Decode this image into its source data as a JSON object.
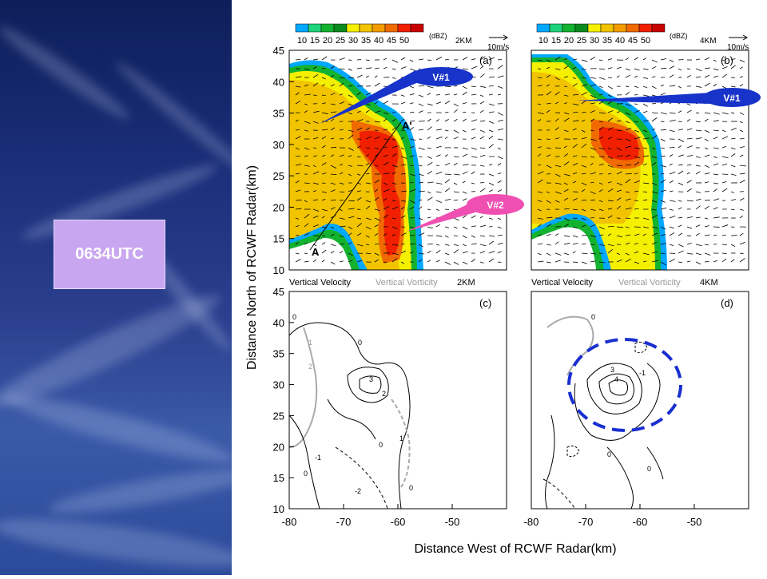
{
  "time_label": "0634UTC",
  "colorbar": {
    "ticks": [
      "10",
      "15",
      "20",
      "25",
      "30",
      "35",
      "40",
      "45",
      "50"
    ],
    "unit": "(dBZ)",
    "colors": [
      "#00a8ff",
      "#1fd37a",
      "#13b330",
      "#0b8a1e",
      "#f5f000",
      "#f2c400",
      "#f29c00",
      "#f06a00",
      "#f02000",
      "#c80000"
    ]
  },
  "panels": {
    "a": {
      "tag": "(a)",
      "height": "2KM",
      "vector": "10m/s",
      "bottom_left": "Vertical Velocity",
      "bottom_mid": "Vertical Vorticity",
      "bottom_right": "2KM"
    },
    "b": {
      "tag": "(b)",
      "height": "4KM",
      "vector": "10m/s",
      "bottom_left": "Vertical Velocity",
      "bottom_mid": "Vertical Vorticity",
      "bottom_right": "4KM"
    },
    "c": {
      "tag": "(c)"
    },
    "d": {
      "tag": "(d)"
    }
  },
  "callouts": {
    "v1": "V#1",
    "v2": "V#2",
    "a_start": "A",
    "a_end": "A'"
  },
  "axes": {
    "ylabel": "Distance North of RCWF Radar(km)",
    "xlabel": "Distance West of RCWF Radar(km)",
    "yticks": [
      "45",
      "40",
      "35",
      "30",
      "25",
      "20",
      "15",
      "10"
    ],
    "xticks": [
      "-80",
      "-70",
      "-60",
      "-50"
    ]
  },
  "contour_labels": [
    "0",
    "1",
    "2",
    "3",
    "4",
    "-1",
    "-2"
  ]
}
